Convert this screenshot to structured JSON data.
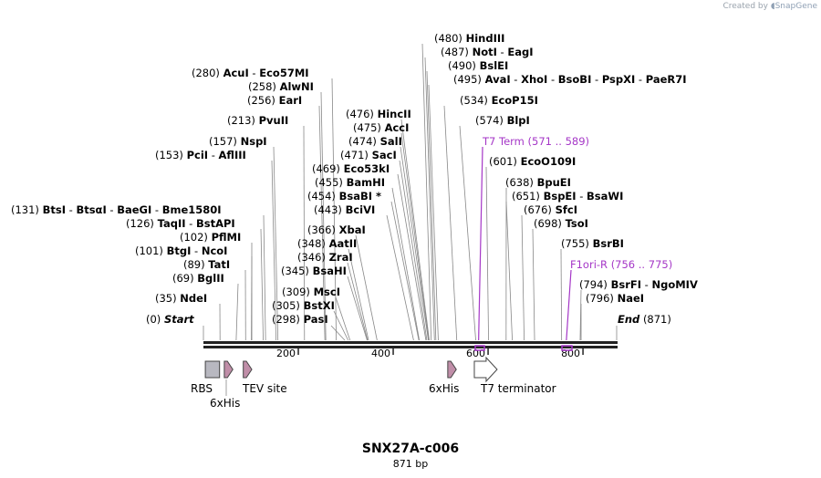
{
  "watermark": {
    "prefix": "Created by",
    "brand": "SnapGene"
  },
  "sequence": {
    "name": "SNX27A-c006",
    "length_label": "871 bp",
    "length": 871
  },
  "axis": {
    "ticks": [
      "200",
      "400",
      "600",
      "800"
    ],
    "start_label": "Start",
    "end_label": "End"
  },
  "sites": [
    {
      "pos": "(0)",
      "names": [
        "Start"
      ],
      "loc": 0
    },
    {
      "pos": "(35)",
      "names": [
        "NdeI"
      ],
      "loc": 35
    },
    {
      "pos": "(69)",
      "names": [
        "BglII"
      ],
      "loc": 69
    },
    {
      "pos": "(89)",
      "names": [
        "TatI"
      ],
      "loc": 89
    },
    {
      "pos": "(101)",
      "names": [
        "BtgI",
        "NcoI"
      ],
      "loc": 101
    },
    {
      "pos": "(102)",
      "names": [
        "PflMI"
      ],
      "loc": 102
    },
    {
      "pos": "(126)",
      "names": [
        "TaqII",
        "BstAPI"
      ],
      "loc": 126
    },
    {
      "pos": "(131)",
      "names": [
        "BtsI",
        "BtsαI",
        "BaeGI",
        "Bme1580I"
      ],
      "loc": 131
    },
    {
      "pos": "(153)",
      "names": [
        "PciI",
        "AflIII"
      ],
      "loc": 153
    },
    {
      "pos": "(157)",
      "names": [
        "NspI"
      ],
      "loc": 157
    },
    {
      "pos": "(213)",
      "names": [
        "PvuII"
      ],
      "loc": 213
    },
    {
      "pos": "(256)",
      "names": [
        "EarI"
      ],
      "loc": 256
    },
    {
      "pos": "(258)",
      "names": [
        "AlwNI"
      ],
      "loc": 258
    },
    {
      "pos": "(280)",
      "names": [
        "AcuI",
        "Eco57MI"
      ],
      "loc": 280
    },
    {
      "pos": "(298)",
      "names": [
        "PasI"
      ],
      "loc": 298
    },
    {
      "pos": "(305)",
      "names": [
        "BstXI"
      ],
      "loc": 305
    },
    {
      "pos": "(309)",
      "names": [
        "MscI"
      ],
      "loc": 309
    },
    {
      "pos": "(345)",
      "names": [
        "BsaHI"
      ],
      "loc": 345
    },
    {
      "pos": "(346)",
      "names": [
        "ZraI"
      ],
      "loc": 346
    },
    {
      "pos": "(348)",
      "names": [
        "AatII"
      ],
      "loc": 348
    },
    {
      "pos": "(366)",
      "names": [
        "XbaI"
      ],
      "loc": 366
    },
    {
      "pos": "(443)",
      "names": [
        "BciVI"
      ],
      "loc": 443
    },
    {
      "pos": "(454)",
      "names": [
        "BsaBI *"
      ],
      "loc": 454
    },
    {
      "pos": "(455)",
      "names": [
        "BamHI"
      ],
      "loc": 455
    },
    {
      "pos": "(469)",
      "names": [
        "Eco53kI"
      ],
      "loc": 469
    },
    {
      "pos": "(471)",
      "names": [
        "SacI"
      ],
      "loc": 471
    },
    {
      "pos": "(474)",
      "names": [
        "SalI"
      ],
      "loc": 474
    },
    {
      "pos": "(475)",
      "names": [
        "AccI"
      ],
      "loc": 475
    },
    {
      "pos": "(476)",
      "names": [
        "HincII"
      ],
      "loc": 476
    },
    {
      "pos": "(480)",
      "names": [
        "HindIII"
      ],
      "loc": 480
    },
    {
      "pos": "(487)",
      "names": [
        "NotI",
        "EagI"
      ],
      "loc": 487
    },
    {
      "pos": "(490)",
      "names": [
        "BslEI"
      ],
      "loc": 490
    },
    {
      "pos": "(495)",
      "names": [
        "AvaI",
        "XhoI",
        "BsoBI",
        "PspXI",
        "PaeR7I"
      ],
      "loc": 495
    },
    {
      "pos": "(534)",
      "names": [
        "EcoP15I"
      ],
      "loc": 534
    },
    {
      "pos": "(574)",
      "names": [
        "BlpI"
      ],
      "loc": 574
    },
    {
      "pos": "(571 .. 589)",
      "names": [
        "T7 Term"
      ],
      "loc": 580
    },
    {
      "pos": "(601)",
      "names": [
        "EcoO109I"
      ],
      "loc": 601
    },
    {
      "pos": "(638)",
      "names": [
        "BpuEI"
      ],
      "loc": 638
    },
    {
      "pos": "(651)",
      "names": [
        "BspEI",
        "BsaWI"
      ],
      "loc": 651
    },
    {
      "pos": "(676)",
      "names": [
        "SfcI"
      ],
      "loc": 676
    },
    {
      "pos": "(698)",
      "names": [
        "TsoI"
      ],
      "loc": 698
    },
    {
      "pos": "(755)",
      "names": [
        "BsrBI"
      ],
      "loc": 755
    },
    {
      "pos": "(756 .. 775)",
      "names": [
        "F1ori-R"
      ],
      "loc": 765
    },
    {
      "pos": "(794)",
      "names": [
        "BsrFI",
        "NgoMIV"
      ],
      "loc": 794
    },
    {
      "pos": "(796)",
      "names": [
        "NaeI"
      ],
      "loc": 796
    },
    {
      "pos": "(871)",
      "names": [
        "End"
      ],
      "loc": 871
    }
  ],
  "features": [
    {
      "name": "RBS",
      "start": 4,
      "end": 34,
      "kind": "box"
    },
    {
      "name": "6xHis",
      "start": 44,
      "end": 62,
      "kind": "arrow"
    },
    {
      "name": "TEV site",
      "start": 84,
      "end": 102,
      "kind": "arrow"
    },
    {
      "name": "6xHis",
      "start": 515,
      "end": 533,
      "kind": "arrow"
    },
    {
      "name": "T7 terminator",
      "start": 571,
      "end": 619,
      "kind": "open-arrow"
    }
  ],
  "colors": {
    "primer": "#a537c7",
    "feature_fill": "#c08ea8",
    "rbs_fill": "#b8b8c0"
  }
}
